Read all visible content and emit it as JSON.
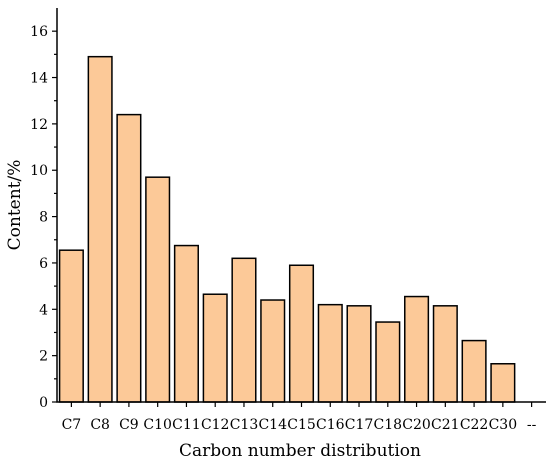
{
  "chart_data": {
    "type": "bar",
    "categories": [
      "C7",
      "C8",
      "C9",
      "C10",
      "C11",
      "C12",
      "C13",
      "C14",
      "C15",
      "C16",
      "C17",
      "C18",
      "C20",
      "C21",
      "C22",
      "C30",
      "--"
    ],
    "values": [
      6.55,
      14.9,
      12.4,
      9.7,
      6.75,
      4.65,
      6.2,
      4.4,
      5.9,
      4.2,
      4.15,
      3.45,
      4.55,
      4.15,
      2.65,
      1.65,
      null
    ],
    "title": "",
    "xlabel": "Carbon number distribution",
    "ylabel": "Content/%",
    "ylim": [
      0,
      17
    ],
    "yticks": [
      0,
      2,
      4,
      6,
      8,
      10,
      12,
      14,
      16
    ],
    "grid": false,
    "bar_color": "#fcc998"
  }
}
